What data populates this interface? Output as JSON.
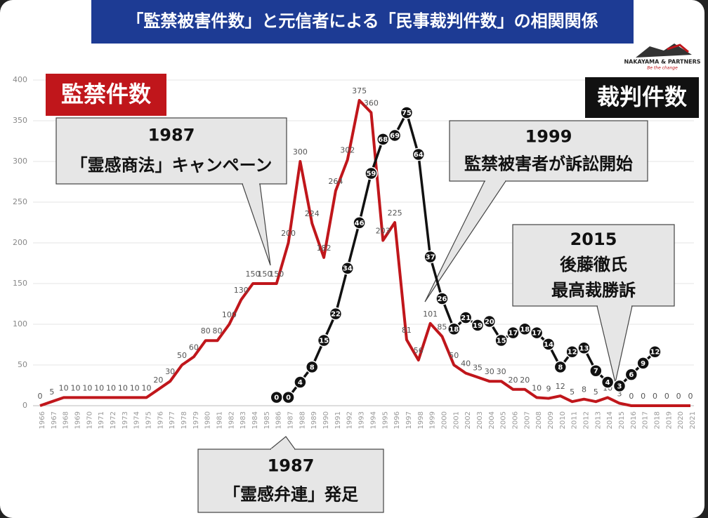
{
  "chart_data": {
    "type": "line",
    "title": "「監禁被害件数」と元信者による「民事裁判件数」の相関関係",
    "logo": {
      "name": "NAKAYAMA & PARTNERS",
      "tagline": "Be the change"
    },
    "categories": [
      "1966",
      "1967",
      "1968",
      "1969",
      "1970",
      "1971",
      "1972",
      "1973",
      "1974",
      "1975",
      "1976",
      "1977",
      "1978",
      "1979",
      "1980",
      "1981",
      "1982",
      "1983",
      "1984",
      "1985",
      "1986",
      "1987",
      "1988",
      "1989",
      "1990",
      "1991",
      "1992",
      "1993",
      "1994",
      "1995",
      "1996",
      "1997",
      "1998",
      "1999",
      "2000",
      "2001",
      "2002",
      "2003",
      "2004",
      "2005",
      "2006",
      "2007",
      "2008",
      "2009",
      "2010",
      "2011",
      "2012",
      "2013",
      "2014",
      "2015",
      "2016",
      "2017",
      "2018",
      "2019",
      "2020",
      "2021"
    ],
    "series": [
      {
        "name": "監禁件数",
        "color": "#c0161b",
        "values": [
          0,
          5,
          10,
          10,
          10,
          10,
          10,
          10,
          10,
          10,
          20,
          30,
          50,
          60,
          80,
          80,
          100,
          130,
          150,
          150,
          150,
          200,
          300,
          224,
          182,
          264,
          302,
          375,
          360,
          203,
          225,
          81,
          56,
          101,
          85,
          50,
          40,
          35,
          30,
          30,
          20,
          20,
          10,
          9,
          12,
          5,
          8,
          5,
          10,
          3,
          0,
          0,
          0,
          0,
          0,
          0
        ]
      },
      {
        "name": "裁判件数",
        "color": "#111111",
        "axis": "y2",
        "values": [
          null,
          null,
          null,
          null,
          null,
          null,
          null,
          null,
          null,
          null,
          null,
          null,
          null,
          null,
          null,
          null,
          null,
          null,
          null,
          null,
          0,
          0,
          4,
          8,
          15,
          22,
          34,
          46,
          59,
          68,
          69,
          75,
          64,
          37,
          26,
          18,
          21,
          19,
          20,
          15,
          17,
          18,
          17,
          14,
          8,
          12,
          13,
          7,
          4,
          3,
          6,
          9,
          12,
          null,
          null,
          null
        ]
      }
    ],
    "ylim": [
      0,
      400
    ],
    "yticks": [
      0,
      50,
      100,
      150,
      200,
      250,
      300,
      350,
      400
    ],
    "y2lim": [
      -2.2,
      83.6
    ],
    "grid": true,
    "annotations": [
      {
        "lines": [
          "1987",
          "「霊感商法」キャンペーン"
        ],
        "target": "1987"
      },
      {
        "lines": [
          "1999",
          "監禁被害者が訴訟開始"
        ],
        "target": "1999"
      },
      {
        "lines": [
          "2015",
          "後藤徹氏",
          "最高裁勝訴"
        ],
        "target": "2015"
      },
      {
        "lines": [
          "1987",
          "「霊感弁連」発足"
        ],
        "target": "1987"
      }
    ]
  }
}
